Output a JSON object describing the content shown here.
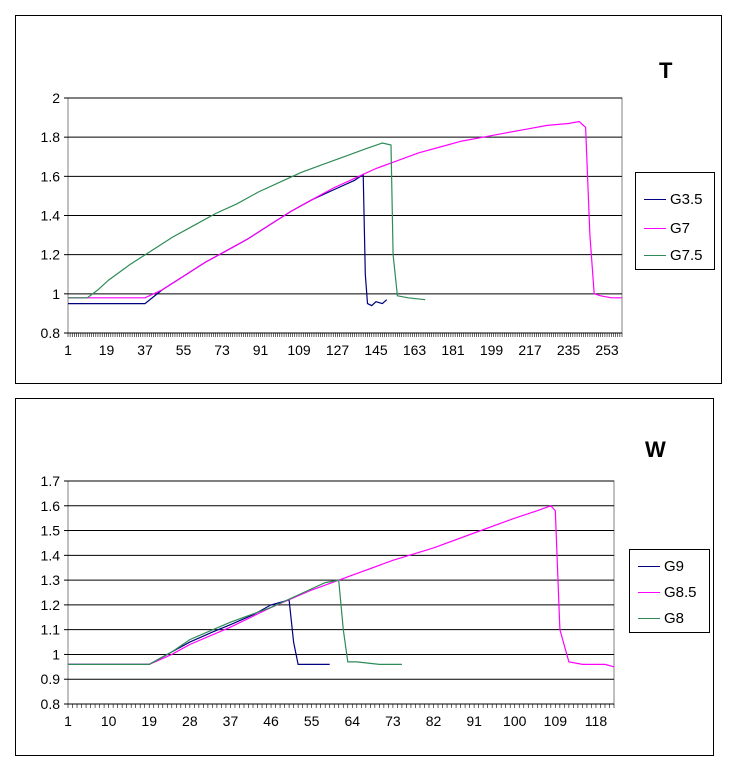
{
  "chart_data": [
    {
      "type": "line",
      "title": "T",
      "ylim": [
        0.8,
        2
      ],
      "yticks": [
        "0.8",
        "1",
        "1.2",
        "1.4",
        "1.6",
        "1.8",
        "2"
      ],
      "xticks": [
        "1",
        "19",
        "37",
        "55",
        "73",
        "91",
        "109",
        "127",
        "145",
        "163",
        "181",
        "199",
        "217",
        "235",
        "253"
      ],
      "xrange": [
        1,
        260
      ],
      "grid": true,
      "legend": "right",
      "series": [
        {
          "name": "G3.5",
          "color": "#000080",
          "x": [
            1,
            10,
            20,
            30,
            37,
            45,
            55,
            65,
            75,
            85,
            95,
            105,
            115,
            125,
            135,
            139,
            140,
            141,
            143,
            145,
            148,
            150
          ],
          "y": [
            0.95,
            0.95,
            0.95,
            0.95,
            0.95,
            1.02,
            1.09,
            1.16,
            1.22,
            1.28,
            1.35,
            1.42,
            1.48,
            1.53,
            1.58,
            1.61,
            1.1,
            0.95,
            0.94,
            0.96,
            0.95,
            0.97
          ]
        },
        {
          "name": "G7",
          "color": "#ff00ff",
          "x": [
            1,
            10,
            20,
            30,
            37,
            45,
            55,
            65,
            75,
            85,
            95,
            105,
            115,
            125,
            135,
            145,
            155,
            165,
            175,
            185,
            195,
            205,
            215,
            225,
            235,
            240,
            243,
            245,
            247,
            250,
            255,
            260
          ],
          "y": [
            0.98,
            0.98,
            0.98,
            0.98,
            0.98,
            1.02,
            1.09,
            1.16,
            1.22,
            1.28,
            1.35,
            1.42,
            1.48,
            1.54,
            1.59,
            1.64,
            1.68,
            1.72,
            1.75,
            1.78,
            1.8,
            1.82,
            1.84,
            1.86,
            1.87,
            1.88,
            1.85,
            1.3,
            1.0,
            0.99,
            0.98,
            0.98
          ]
        },
        {
          "name": "G7.5",
          "color": "#2e8b57",
          "x": [
            1,
            5,
            10,
            15,
            20,
            30,
            40,
            50,
            60,
            70,
            80,
            90,
            100,
            110,
            120,
            130,
            140,
            148,
            152,
            153,
            155,
            160,
            168
          ],
          "y": [
            0.98,
            0.98,
            0.98,
            1.02,
            1.07,
            1.15,
            1.22,
            1.29,
            1.35,
            1.41,
            1.46,
            1.52,
            1.57,
            1.62,
            1.66,
            1.7,
            1.74,
            1.77,
            1.76,
            1.2,
            0.99,
            0.98,
            0.97
          ]
        }
      ]
    },
    {
      "type": "line",
      "title": "W",
      "ylim": [
        0.8,
        1.7
      ],
      "yticks": [
        "0.8",
        "0.9",
        "1",
        "1.1",
        "1.2",
        "1.3",
        "1.4",
        "1.5",
        "1.6",
        "1.7"
      ],
      "xticks": [
        "1",
        "10",
        "19",
        "28",
        "37",
        "46",
        "55",
        "64",
        "73",
        "82",
        "91",
        "100",
        "109",
        "118"
      ],
      "xrange": [
        1,
        122
      ],
      "grid": true,
      "legend": "right",
      "series": [
        {
          "name": "G9",
          "color": "#000080",
          "x": [
            1,
            5,
            10,
            15,
            19,
            23,
            28,
            33,
            37,
            42,
            46,
            50,
            51,
            52,
            54,
            57,
            59
          ],
          "y": [
            0.96,
            0.96,
            0.96,
            0.96,
            0.96,
            1.0,
            1.05,
            1.09,
            1.12,
            1.16,
            1.2,
            1.22,
            1.05,
            0.96,
            0.96,
            0.96,
            0.96
          ]
        },
        {
          "name": "G8.5",
          "color": "#ff00ff",
          "x": [
            1,
            10,
            19,
            24,
            28,
            37,
            46,
            55,
            64,
            73,
            82,
            91,
            100,
            105,
            108,
            109,
            110,
            112,
            115,
            120,
            122
          ],
          "y": [
            0.96,
            0.96,
            0.96,
            1.0,
            1.04,
            1.11,
            1.19,
            1.26,
            1.32,
            1.38,
            1.43,
            1.49,
            1.55,
            1.58,
            1.6,
            1.58,
            1.1,
            0.97,
            0.96,
            0.96,
            0.95
          ]
        },
        {
          "name": "G8",
          "color": "#2e8b57",
          "x": [
            1,
            10,
            19,
            24,
            28,
            37,
            46,
            52,
            58,
            61,
            62,
            63,
            65,
            70,
            75
          ],
          "y": [
            0.96,
            0.96,
            0.96,
            1.01,
            1.06,
            1.13,
            1.19,
            1.24,
            1.29,
            1.3,
            1.1,
            0.97,
            0.97,
            0.96,
            0.96
          ]
        }
      ]
    }
  ]
}
